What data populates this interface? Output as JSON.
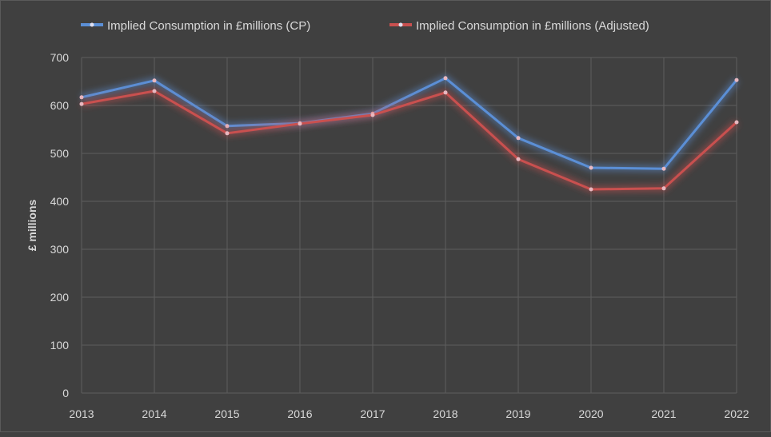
{
  "chart_data": {
    "type": "line",
    "title": "",
    "xlabel": "",
    "ylabel": "£ millions",
    "ylim": [
      0,
      700
    ],
    "yticks": [
      0,
      100,
      200,
      300,
      400,
      500,
      600,
      700
    ],
    "grid": true,
    "legend_position": "top",
    "categories": [
      "2013",
      "2014",
      "2015",
      "2016",
      "2017",
      "2018",
      "2019",
      "2020",
      "2021",
      "2022"
    ],
    "series": [
      {
        "name": "Implied Consumption in £millions (CP)",
        "color": "#5b8fd6",
        "values": [
          617,
          652,
          557,
          563,
          583,
          657,
          532,
          470,
          468,
          653
        ]
      },
      {
        "name": "Implied Consumption in £millions (Adjusted)",
        "color": "#c9504f",
        "values": [
          603,
          630,
          542,
          562,
          580,
          627,
          488,
          425,
          427,
          565
        ]
      }
    ]
  }
}
